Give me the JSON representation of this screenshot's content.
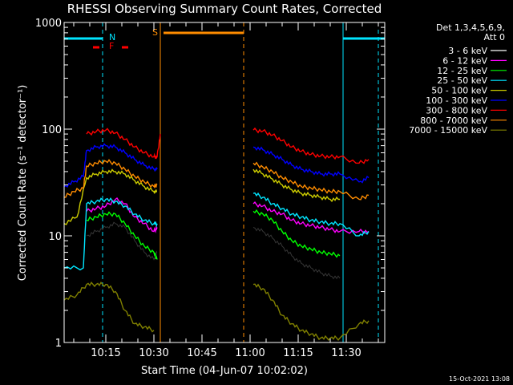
{
  "chart_data": {
    "type": "line",
    "title": "RHESSI Observing Summary Count Rates, Corrected",
    "xlabel": "Start Time (04-Jun-07 10:02:02)",
    "ylabel": "Corrected Count Rate (s⁻¹ detector⁻¹)",
    "yscale": "log",
    "ylim": [
      1,
      1000
    ],
    "xlim": [
      "10:02",
      "11:42"
    ],
    "x_ticks": [
      "10:15",
      "10:30",
      "10:45",
      "11:00",
      "11:15",
      "11:30"
    ],
    "y_ticks": [
      "1",
      "10",
      "100",
      "1000"
    ],
    "timestamp": "15-Oct-2021 13:08",
    "legend_header": [
      "Det 1,3,4,5,6,9,",
      "Att 0"
    ],
    "flag_labels": {
      "N": "N",
      "F": "F",
      "S": "S"
    },
    "colors": {
      "n_flag": "#00e5ff",
      "f_flag": "#ff0000",
      "s_flag": "#ff8c00"
    },
    "flags": {
      "night": [
        [
          "10:02",
          "10:14"
        ],
        [
          "11:29",
          "11:42"
        ]
      ],
      "flare": [
        [
          "10:11",
          "10:13"
        ],
        [
          "10:20",
          "10:22"
        ]
      ],
      "saa": [
        [
          "10:33",
          "10:58"
        ]
      ]
    },
    "vlines": [
      {
        "time": "10:14",
        "color": "#00e5ff"
      },
      {
        "time": "10:32",
        "color": "#ff8c00"
      },
      {
        "time": "10:58",
        "color": "#ff8c00"
      },
      {
        "time": "11:29",
        "color": "#00e5ff"
      },
      {
        "time": "11:40",
        "color": "#00e5ff"
      }
    ],
    "series": [
      {
        "name": "3 - 6 keV",
        "color": "#000000",
        "segments": [
          {
            "x": [
              "10:09",
              "10:12",
              "10:15",
              "10:18",
              "10:21",
              "10:24",
              "10:27",
              "10:30",
              "10:31"
            ],
            "y": [
              10,
              11,
              12,
              13,
              12,
              9,
              7,
              6,
              7
            ]
          },
          {
            "x": [
              "11:01",
              "11:04",
              "11:07",
              "11:10",
              "11:13",
              "11:16",
              "11:19",
              "11:22",
              "11:25",
              "11:28"
            ],
            "y": [
              12,
              11,
              9.5,
              8,
              6.5,
              5.5,
              5,
              4.5,
              4.2,
              4
            ]
          }
        ]
      },
      {
        "name": "6 - 12 keV",
        "color": "#ff00ff",
        "segments": [
          {
            "x": [
              "10:09",
              "10:12",
              "10:15",
              "10:18",
              "10:21",
              "10:24",
              "10:27",
              "10:30",
              "10:31"
            ],
            "y": [
              17,
              18,
              19,
              22,
              20,
              15,
              13,
              11,
              12
            ]
          },
          {
            "x": [
              "11:01",
              "11:04",
              "11:07",
              "11:10",
              "11:13",
              "11:16",
              "11:19",
              "11:22",
              "11:25",
              "11:28",
              "11:34",
              "11:37"
            ],
            "y": [
              20,
              19,
              17,
              16,
              14,
              13,
              12.5,
              12,
              11.5,
              11,
              11,
              11
            ]
          }
        ]
      },
      {
        "name": "12 - 25 keV",
        "color": "#00ff00",
        "segments": [
          {
            "x": [
              "10:09",
              "10:12",
              "10:15",
              "10:18",
              "10:21",
              "10:24",
              "10:27",
              "10:30",
              "10:31"
            ],
            "y": [
              14,
              15,
              16,
              16,
              13,
              10,
              8,
              7,
              6
            ]
          },
          {
            "x": [
              "11:01",
              "11:04",
              "11:07",
              "11:10",
              "11:13",
              "11:16",
              "11:19",
              "11:22",
              "11:25",
              "11:28"
            ],
            "y": [
              17,
              16,
              14,
              11,
              9,
              8,
              7.5,
              7,
              6.8,
              6.5
            ]
          }
        ]
      },
      {
        "name": "25 - 50 keV",
        "color": "#00e5ff",
        "segments": [
          {
            "x": [
              "10:02",
              "10:08",
              "10:09",
              "10:12",
              "10:15",
              "10:18",
              "10:21",
              "10:24",
              "10:27",
              "10:30",
              "10:31"
            ],
            "y": [
              5,
              5,
              20,
              21,
              22,
              21,
              19,
              16,
              14,
              13,
              13
            ]
          },
          {
            "x": [
              "11:01",
              "11:04",
              "11:07",
              "11:10",
              "11:13",
              "11:16",
              "11:19",
              "11:22",
              "11:25",
              "11:28",
              "11:34",
              "11:37"
            ],
            "y": [
              25,
              23,
              20,
              18,
              16,
              15,
              14,
              13.5,
              13,
              13,
              10,
              11
            ]
          }
        ]
      },
      {
        "name": "50 - 100 keV",
        "color": "#cccc00",
        "segments": [
          {
            "x": [
              "10:02",
              "10:06",
              "10:09",
              "10:12",
              "10:15",
              "10:18",
              "10:21",
              "10:24",
              "10:27",
              "10:30",
              "10:31"
            ],
            "y": [
              13,
              15,
              35,
              38,
              40,
              40,
              38,
              33,
              29,
              26,
              26
            ]
          },
          {
            "x": [
              "11:01",
              "11:04",
              "11:07",
              "11:10",
              "11:13",
              "11:16",
              "11:19",
              "11:22",
              "11:25",
              "11:28"
            ],
            "y": [
              42,
              38,
              34,
              30,
              27,
              25,
              24,
              23,
              22,
              22
            ]
          }
        ]
      },
      {
        "name": "100 - 300 keV",
        "color": "#0000ff",
        "segments": [
          {
            "x": [
              "10:02",
              "10:05",
              "10:08",
              "10:09",
              "10:12",
              "10:15",
              "10:18",
              "10:21",
              "10:24",
              "10:27",
              "10:30",
              "10:31"
            ],
            "y": [
              29,
              32,
              36,
              63,
              68,
              70,
              68,
              60,
              52,
              46,
              42,
              42
            ]
          },
          {
            "x": [
              "11:01",
              "11:04",
              "11:07",
              "11:10",
              "11:13",
              "11:16",
              "11:19",
              "11:22",
              "11:25",
              "11:28",
              "11:34",
              "11:37"
            ],
            "y": [
              68,
              64,
              58,
              52,
              46,
              42,
              40,
              38,
              38,
              38,
              32,
              35
            ]
          }
        ]
      },
      {
        "name": "300 - 800 keV",
        "color": "#ff0000",
        "segments": [
          {
            "x": [
              "10:09",
              "10:12",
              "10:15",
              "10:18",
              "10:21",
              "10:24",
              "10:27",
              "10:30",
              "10:31",
              "10:32"
            ],
            "y": [
              90,
              95,
              98,
              92,
              80,
              68,
              60,
              55,
              55,
              90
            ]
          },
          {
            "x": [
              "11:01",
              "11:04",
              "11:07",
              "11:10",
              "11:13",
              "11:16",
              "11:19",
              "11:22",
              "11:25",
              "11:28",
              "11:34",
              "11:37"
            ],
            "y": [
              98,
              96,
              88,
              78,
              68,
              62,
              58,
              56,
              55,
              55,
              48,
              52
            ]
          }
        ]
      },
      {
        "name": "800 - 7000 keV",
        "color": "#ff8c00",
        "segments": [
          {
            "x": [
              "10:02",
              "10:05",
              "10:08",
              "10:09",
              "10:12",
              "10:15",
              "10:18",
              "10:21",
              "10:24",
              "10:27",
              "10:30",
              "10:31"
            ],
            "y": [
              23,
              26,
              28,
              45,
              48,
              50,
              48,
              42,
              36,
              32,
              29,
              30
            ]
          },
          {
            "x": [
              "11:01",
              "11:04",
              "11:07",
              "11:10",
              "11:13",
              "11:16",
              "11:19",
              "11:22",
              "11:25",
              "11:28",
              "11:34",
              "11:37"
            ],
            "y": [
              48,
              44,
              40,
              35,
              32,
              29,
              28,
              27,
              26,
              26,
              22,
              24
            ]
          }
        ]
      },
      {
        "name": "7000 - 15000 keV",
        "color": "#808000",
        "segments": [
          {
            "x": [
              "10:02",
              "10:06",
              "10:09",
              "10:12",
              "10:15",
              "10:18",
              "10:21",
              "10:24",
              "10:27",
              "10:30"
            ],
            "y": [
              2.5,
              2.8,
              3.5,
              3.5,
              3.5,
              3,
              2,
              1.5,
              1.4,
              1.3
            ]
          },
          {
            "x": [
              "11:01",
              "11:04",
              "11:07",
              "11:10",
              "11:13",
              "11:16",
              "11:19",
              "11:22",
              "11:25",
              "11:28",
              "11:34",
              "11:37"
            ],
            "y": [
              3.5,
              3.2,
              2.5,
              1.8,
              1.5,
              1.3,
              1.2,
              1.1,
              1.1,
              1.1,
              1.5,
              1.6
            ]
          }
        ]
      }
    ]
  }
}
